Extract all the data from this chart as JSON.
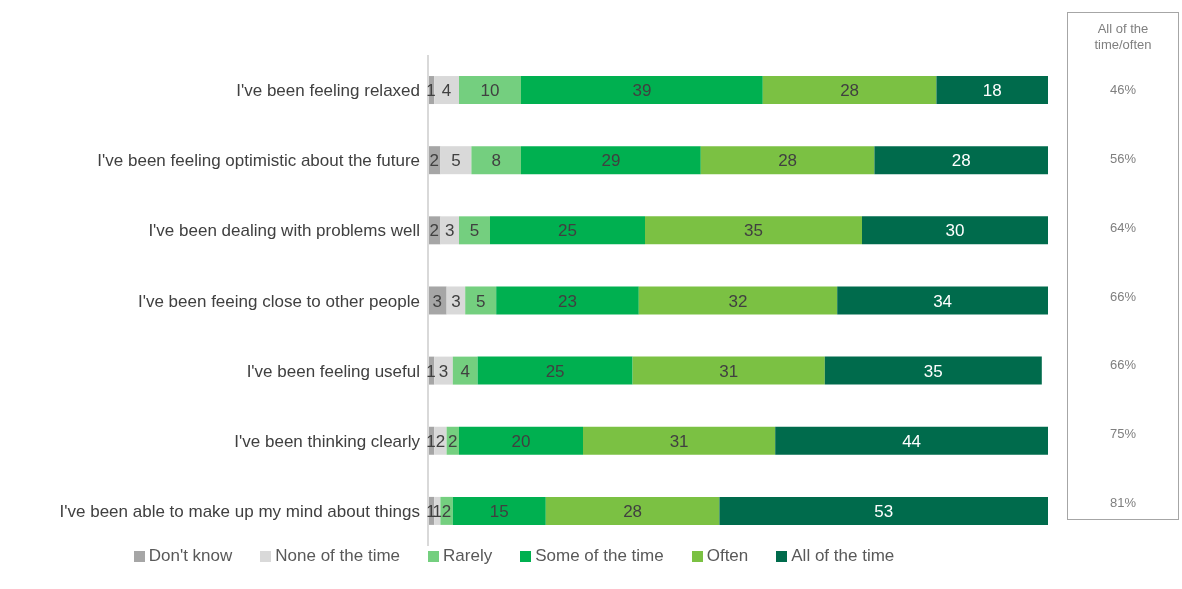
{
  "chart_data": {
    "type": "bar",
    "orientation": "horizontal",
    "stacked": true,
    "data_labels": true,
    "legend": "bottom",
    "grid": false,
    "tick_labels": "y",
    "xlim": [
      0,
      100
    ],
    "categories": [
      "I've been feeling relaxed",
      "I've been feeling optimistic about the future",
      "I've been dealing with problems well",
      "I've been feeing close to other people",
      "I've been feeling useful",
      "I've been thinking clearly",
      "I've been able to make up my mind about things"
    ],
    "series": [
      {
        "name": "Don't know",
        "color": "#a6a6a6",
        "values": [
          1,
          2,
          2,
          3,
          1,
          1,
          1
        ]
      },
      {
        "name": "None of the time",
        "color": "#d9d9d9",
        "values": [
          4,
          5,
          3,
          3,
          3,
          2,
          1
        ]
      },
      {
        "name": "Rarely",
        "color": "#74cf7f",
        "values": [
          10,
          8,
          5,
          5,
          4,
          2,
          2
        ]
      },
      {
        "name": "Some of the time",
        "color": "#00b050",
        "values": [
          39,
          29,
          25,
          23,
          25,
          20,
          15
        ]
      },
      {
        "name": "Often",
        "color": "#7bc143",
        "values": [
          28,
          28,
          35,
          32,
          31,
          31,
          28
        ]
      },
      {
        "name": "All of the time",
        "color": "#006b4c",
        "values": [
          18,
          28,
          30,
          34,
          35,
          44,
          53
        ]
      }
    ],
    "annotations": [
      "All of the time/often",
      "46%",
      "56%",
      "64%",
      "66%",
      "66%",
      "75%",
      "81%"
    ]
  }
}
